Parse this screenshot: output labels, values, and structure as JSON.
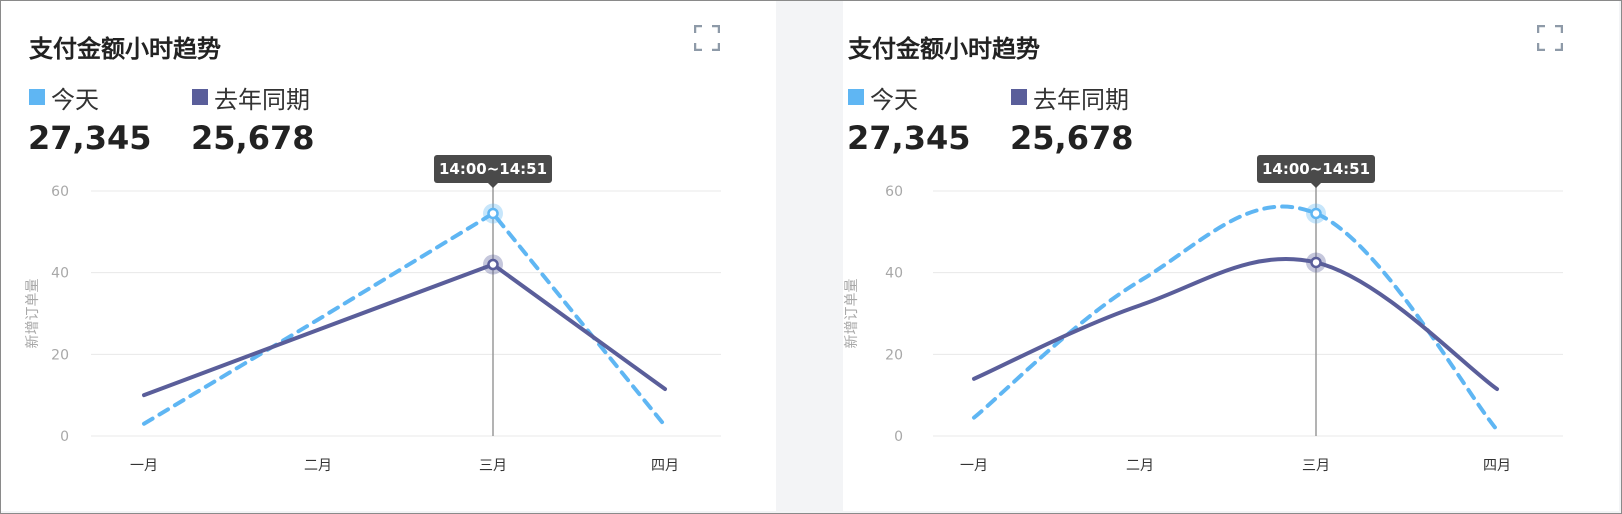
{
  "colors": {
    "today": "#5fb6f3",
    "last_year": "#5a5e9a",
    "grid": "#e8e8e8",
    "tooltip_bg": "#4a4a4a"
  },
  "cards": [
    {
      "title": "支付金额小时趋势",
      "expand_icon": "fullscreen-icon",
      "legend": [
        {
          "label": "今天",
          "value": "27,345"
        },
        {
          "label": "去年同期",
          "value": "25,678"
        }
      ],
      "tooltip": "14:00~14:51"
    },
    {
      "title": "支付金额小时趋势",
      "expand_icon": "fullscreen-icon",
      "legend": [
        {
          "label": "今天",
          "value": "27,345"
        },
        {
          "label": "去年同期",
          "value": "25,678"
        }
      ],
      "tooltip": "14:00~14:51"
    }
  ],
  "chart_data": [
    {
      "type": "line",
      "curve": "linear",
      "categories": [
        "一月",
        "二月",
        "三月",
        "四月"
      ],
      "ylabel": "新增订单量",
      "ylim": [
        0,
        60
      ],
      "yticks": [
        "0",
        "20",
        "40",
        "60"
      ],
      "grid": true,
      "highlight_index": 2,
      "series": [
        {
          "name": "今天",
          "style": "dashed",
          "values": [
            3,
            28.5,
            54.5,
            2.5
          ]
        },
        {
          "name": "去年同期",
          "style": "solid",
          "values": [
            10,
            26,
            42,
            11.5
          ]
        }
      ]
    },
    {
      "type": "line",
      "curve": "smooth",
      "categories": [
        "一月",
        "二月",
        "三月",
        "四月"
      ],
      "ylabel": "新增订单量",
      "ylim": [
        0,
        60
      ],
      "yticks": [
        "0",
        "20",
        "40",
        "60"
      ],
      "grid": true,
      "highlight_index": 2,
      "series": [
        {
          "name": "今天",
          "style": "dashed",
          "values": [
            4.5,
            38,
            54.5,
            1.5
          ]
        },
        {
          "name": "去年同期",
          "style": "solid",
          "values": [
            14,
            32,
            42.5,
            11.5
          ]
        }
      ]
    }
  ]
}
